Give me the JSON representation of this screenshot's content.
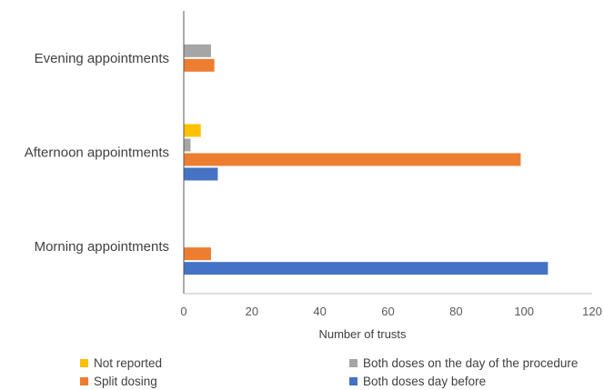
{
  "chart_data": {
    "type": "bar",
    "orientation": "horizontal",
    "categories": [
      "Morning appointments",
      "Afternoon appointments",
      "Evening appointments"
    ],
    "series": [
      {
        "name": "Both doses day before",
        "color": "#4472C4",
        "values": [
          107,
          10,
          0
        ]
      },
      {
        "name": "Split dosing",
        "color": "#ED7D31",
        "values": [
          8,
          99,
          9
        ]
      },
      {
        "name": "Both doses on the day of the procedure",
        "color": "#A5A5A5",
        "values": [
          0,
          2,
          8
        ]
      },
      {
        "name": "Not reported",
        "color": "#FFC000",
        "values": [
          0,
          5,
          0
        ]
      }
    ],
    "xlabel": "Number of trusts",
    "ylabel": "",
    "xlim": [
      0,
      120
    ],
    "xticks": [
      "0",
      "20",
      "40",
      "60",
      "80",
      "100",
      "120"
    ],
    "grid": false,
    "legend_position": "bottom"
  },
  "legend": [
    {
      "label": "Not reported",
      "color": "#FFC000"
    },
    {
      "label": "Both doses on the day of the procedure",
      "color": "#A5A5A5"
    },
    {
      "label": "Split dosing",
      "color": "#ED7D31"
    },
    {
      "label": "Both doses day before",
      "color": "#4472C4"
    }
  ]
}
